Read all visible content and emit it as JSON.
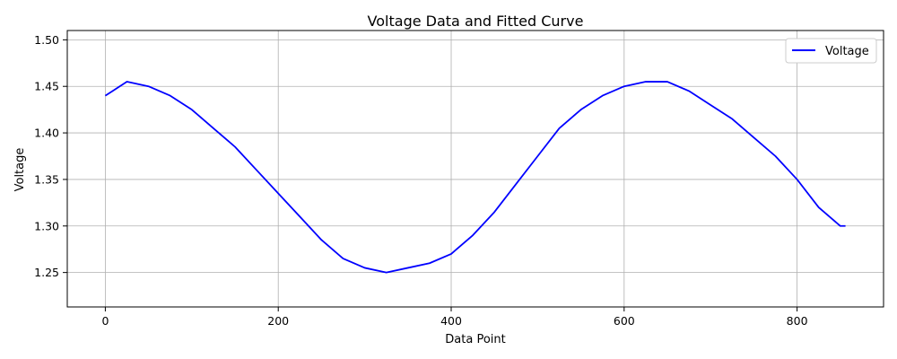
{
  "chart_data": {
    "type": "line",
    "title": "Voltage Data and Fitted Curve",
    "xlabel": "Data Point",
    "ylabel": "Voltage",
    "xlim": [
      -44,
      900
    ],
    "ylim": [
      1.213,
      1.51
    ],
    "xticks": [
      0,
      200,
      400,
      600,
      800
    ],
    "yticks": [
      1.25,
      1.3,
      1.35,
      1.4,
      1.45,
      1.5
    ],
    "xtick_labels": [
      "0",
      "200",
      "400",
      "600",
      "800"
    ],
    "ytick_labels": [
      "1.25",
      "1.30",
      "1.35",
      "1.40",
      "1.45",
      "1.50"
    ],
    "grid": true,
    "legend_position": "top-right",
    "series": [
      {
        "name": "Voltage",
        "color": "#0000ff",
        "x": [
          0,
          25,
          50,
          75,
          100,
          125,
          150,
          175,
          200,
          225,
          250,
          275,
          300,
          325,
          350,
          375,
          400,
          425,
          450,
          475,
          500,
          525,
          550,
          575,
          600,
          625,
          650,
          675,
          700,
          725,
          750,
          775,
          800,
          825,
          850,
          856
        ],
        "y": [
          1.44,
          1.455,
          1.45,
          1.44,
          1.425,
          1.405,
          1.385,
          1.36,
          1.335,
          1.31,
          1.285,
          1.265,
          1.255,
          1.25,
          1.255,
          1.26,
          1.27,
          1.29,
          1.315,
          1.345,
          1.375,
          1.405,
          1.425,
          1.44,
          1.45,
          1.455,
          1.455,
          1.445,
          1.43,
          1.415,
          1.395,
          1.375,
          1.35,
          1.32,
          1.3,
          1.3
        ]
      }
    ]
  }
}
